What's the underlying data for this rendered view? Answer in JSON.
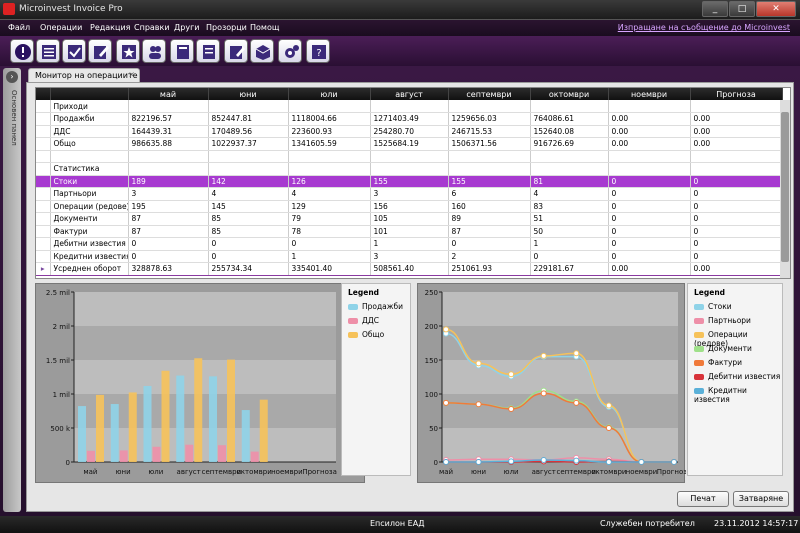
{
  "window": {
    "title": "Microinvest Invoice Pro"
  },
  "menu": {
    "items": [
      "Файл",
      "Операции",
      "Редакция",
      "Справки",
      "Други",
      "Прозорци",
      "Помощ"
    ],
    "report_link": "Изпращане на съобщение до Microinvest"
  },
  "toolbar": {
    "icons": [
      "info-icon",
      "list-icon",
      "check-icon",
      "edit-icon",
      "star-icon",
      "users-icon",
      "book-icon",
      "document-icon",
      "form-icon",
      "box-icon",
      "settings-icon",
      "help-icon"
    ]
  },
  "sidebar": {
    "label": "Основен панел"
  },
  "tab": {
    "label": "Монитор на операциите",
    "close": "×"
  },
  "table": {
    "columns": [
      "",
      "май",
      "юни",
      "юли",
      "август",
      "септември",
      "октомври",
      "ноември",
      "Прогноза"
    ],
    "rows": [
      {
        "cells": [
          "Приходи",
          "",
          "",
          "",
          "",
          "",
          "",
          "",
          ""
        ],
        "style": "section"
      },
      {
        "cells": [
          "Продажби",
          "822196.57",
          "852447.81",
          "1118004.66",
          "1271403.49",
          "1259656.03",
          "764086.61",
          "0.00",
          "0.00"
        ]
      },
      {
        "cells": [
          "ДДС",
          "164439.31",
          "170489.56",
          "223600.93",
          "254280.70",
          "246715.53",
          "152640.08",
          "0.00",
          "0.00"
        ]
      },
      {
        "cells": [
          "Общо",
          "986635.88",
          "1022937.37",
          "1341605.59",
          "1525684.19",
          "1506371.56",
          "916726.69",
          "0.00",
          "0.00"
        ]
      },
      {
        "cells": [
          "",
          "",
          "",
          "",
          "",
          "",
          "",
          "",
          ""
        ]
      },
      {
        "cells": [
          "Статистика",
          "",
          "",
          "",
          "",
          "",
          "",
          "",
          ""
        ],
        "style": "section"
      },
      {
        "cells": [
          "Стоки",
          "189",
          "142",
          "126",
          "155",
          "155",
          "81",
          "0",
          "0"
        ],
        "style": "highlight"
      },
      {
        "cells": [
          "Партньори",
          "3",
          "4",
          "4",
          "3",
          "6",
          "4",
          "0",
          "0"
        ]
      },
      {
        "cells": [
          "Операции (редове)",
          "195",
          "145",
          "129",
          "156",
          "160",
          "83",
          "0",
          "0"
        ]
      },
      {
        "cells": [
          "Документи",
          "87",
          "85",
          "79",
          "105",
          "89",
          "51",
          "0",
          "0"
        ]
      },
      {
        "cells": [
          "Фактури",
          "87",
          "85",
          "78",
          "101",
          "87",
          "50",
          "0",
          "0"
        ]
      },
      {
        "cells": [
          "Дебитни известия",
          "0",
          "0",
          "0",
          "1",
          "0",
          "1",
          "0",
          "0"
        ]
      },
      {
        "cells": [
          "Кредитни известия",
          "0",
          "0",
          "1",
          "3",
          "2",
          "0",
          "0",
          "0"
        ]
      },
      {
        "cells": [
          "Усреднен оборот",
          "328878.63",
          "255734.34",
          "335401.40",
          "508561.40",
          "251061.93",
          "229181.67",
          "0.00",
          "0.00"
        ],
        "style": "selected"
      }
    ]
  },
  "chart_data": [
    {
      "type": "bar",
      "categories": [
        "май",
        "юни",
        "юли",
        "август",
        "септември",
        "октомври",
        "ноември",
        "Прогноза"
      ],
      "ylim": [
        0,
        2500000
      ],
      "yticks": [
        "0",
        "500 k",
        "1 mil",
        "1.5 mil",
        "2 mil",
        "2.5 mil"
      ],
      "legend_title": "Legend",
      "series": [
        {
          "name": "Продажби",
          "color": "#8fd3e8",
          "values": [
            822196.57,
            852447.81,
            1118004.66,
            1271403.49,
            1259656.03,
            764086.61,
            0,
            0
          ]
        },
        {
          "name": "ДДС",
          "color": "#ee8fa8",
          "values": [
            164439.31,
            170489.56,
            223600.93,
            254280.7,
            246715.53,
            152640.08,
            0,
            0
          ]
        },
        {
          "name": "Общо",
          "color": "#f6c25a",
          "values": [
            986635.88,
            1022937.37,
            1341605.59,
            1525684.19,
            1506371.56,
            916726.69,
            0,
            0
          ]
        }
      ]
    },
    {
      "type": "line",
      "categories": [
        "май",
        "юни",
        "юли",
        "август",
        "септември",
        "октомври",
        "ноември",
        "Прогноза"
      ],
      "ylim": [
        0,
        250
      ],
      "yticks": [
        "0",
        "50",
        "100",
        "150",
        "200",
        "250"
      ],
      "legend_title": "Legend",
      "series": [
        {
          "name": "Стоки",
          "color": "#8fd3e8",
          "values": [
            189,
            142,
            126,
            155,
            155,
            81,
            0,
            0
          ]
        },
        {
          "name": "Партньори",
          "color": "#ee8fa8",
          "values": [
            3,
            4,
            4,
            3,
            6,
            4,
            0,
            0
          ]
        },
        {
          "name": "Операции (редове)",
          "color": "#f6c25a",
          "values": [
            195,
            145,
            129,
            156,
            160,
            83,
            0,
            0
          ]
        },
        {
          "name": "Документи",
          "color": "#9fe08a",
          "values": [
            87,
            85,
            79,
            105,
            89,
            51,
            0,
            0
          ]
        },
        {
          "name": "Фактури",
          "color": "#f07a3a",
          "values": [
            87,
            85,
            78,
            101,
            87,
            50,
            0,
            0
          ]
        },
        {
          "name": "Дебитни известия",
          "color": "#d8333a",
          "values": [
            0,
            0,
            0,
            1,
            0,
            1,
            0,
            0
          ]
        },
        {
          "name": "Кредитни известия",
          "color": "#5ab0d8",
          "values": [
            0,
            0,
            1,
            3,
            2,
            0,
            0,
            0
          ]
        }
      ]
    }
  ],
  "buttons": {
    "print": "Печат",
    "close": "Затваряне"
  },
  "status": {
    "company": "Епсилон ЕАД",
    "user": "Служебен потребител",
    "datetime": "23.11.2012 14:57:17"
  }
}
